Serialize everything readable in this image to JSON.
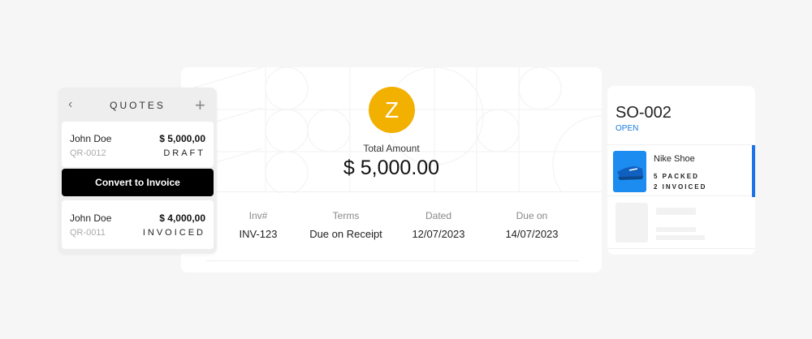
{
  "invoice": {
    "avatar_letter": "Z",
    "total_label": "Total Amount",
    "total_amount": "$ 5,000.00",
    "fields": [
      {
        "label": "Inv#",
        "value": "INV-123"
      },
      {
        "label": "Terms",
        "value": "Due on Receipt"
      },
      {
        "label": "Dated",
        "value": "12/07/2023"
      },
      {
        "label": "Due on",
        "value": "14/07/2023"
      }
    ],
    "avatar_color": "#f2b000"
  },
  "quotes": {
    "title": "QUOTES",
    "back_icon": "chevron-left",
    "add_icon": "plus",
    "items": [
      {
        "name": "John Doe",
        "amount": "$ 5,000,00",
        "id": "QR-0012",
        "status": "DRAFT"
      },
      {
        "name": "John Doe",
        "amount": "$ 4,000,00",
        "id": "QR-0011",
        "status": "INVOICED"
      }
    ],
    "convert_label": "Convert to Invoice"
  },
  "sales_order": {
    "title": "SO-002",
    "status": "OPEN",
    "item": {
      "name": "Nike Shoe",
      "packed": "5 PACKED",
      "invoiced": "2 INVOICED"
    },
    "accent": "#1a73e8"
  }
}
